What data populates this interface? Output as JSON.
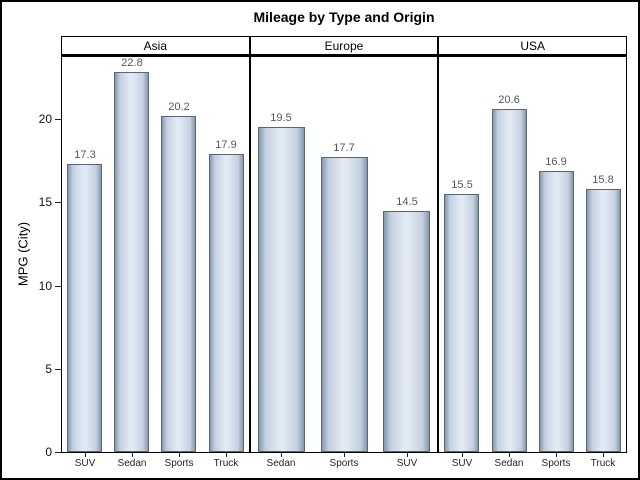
{
  "chart_data": {
    "type": "bar",
    "title": "Mileage by Type and Origin",
    "xlabel": "",
    "ylabel": "MPG (City)",
    "ylim": [
      0,
      23.7
    ],
    "yticks": [
      0,
      5,
      10,
      15,
      20
    ],
    "grid": true,
    "legend": "none",
    "panel_layout": "columns-by-origin",
    "panels": [
      {
        "name": "Asia",
        "categories": [
          "SUV",
          "Sedan",
          "Sports",
          "Truck"
        ],
        "values": [
          17.3,
          22.8,
          20.2,
          17.9
        ]
      },
      {
        "name": "Europe",
        "categories": [
          "Sedan",
          "Sports",
          "SUV"
        ],
        "values": [
          19.5,
          17.7,
          14.5
        ]
      },
      {
        "name": "USA",
        "categories": [
          "SUV",
          "Sedan",
          "Sports",
          "Truck"
        ],
        "values": [
          15.5,
          20.6,
          16.9,
          15.8
        ]
      }
    ],
    "colors": {
      "bar_edge_shade": "#8599ad",
      "bar_mid_shade": "#c3d0e0",
      "bar_center_light": "#e1e9f3",
      "bar_border": "#5a6673",
      "gridline": "#e3e3e3",
      "frame": "#000000",
      "value_label": "#53585e",
      "background": "#ffffff"
    }
  }
}
